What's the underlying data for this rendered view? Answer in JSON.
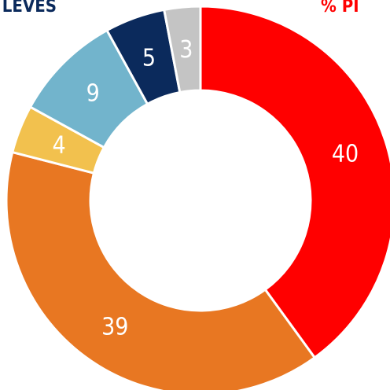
{
  "chart_data": {
    "type": "donut",
    "values": [
      40,
      39,
      4,
      9,
      5,
      3
    ],
    "colors": [
      "#ff0000",
      "#e87722",
      "#f2c14e",
      "#72b4cc",
      "#0b2a5c",
      "#c4c4c4"
    ],
    "annotations": [
      {
        "text": "LEVES",
        "color": "#0b2a5c"
      },
      {
        "text": "% PI",
        "color": "#ff0000"
      }
    ]
  }
}
